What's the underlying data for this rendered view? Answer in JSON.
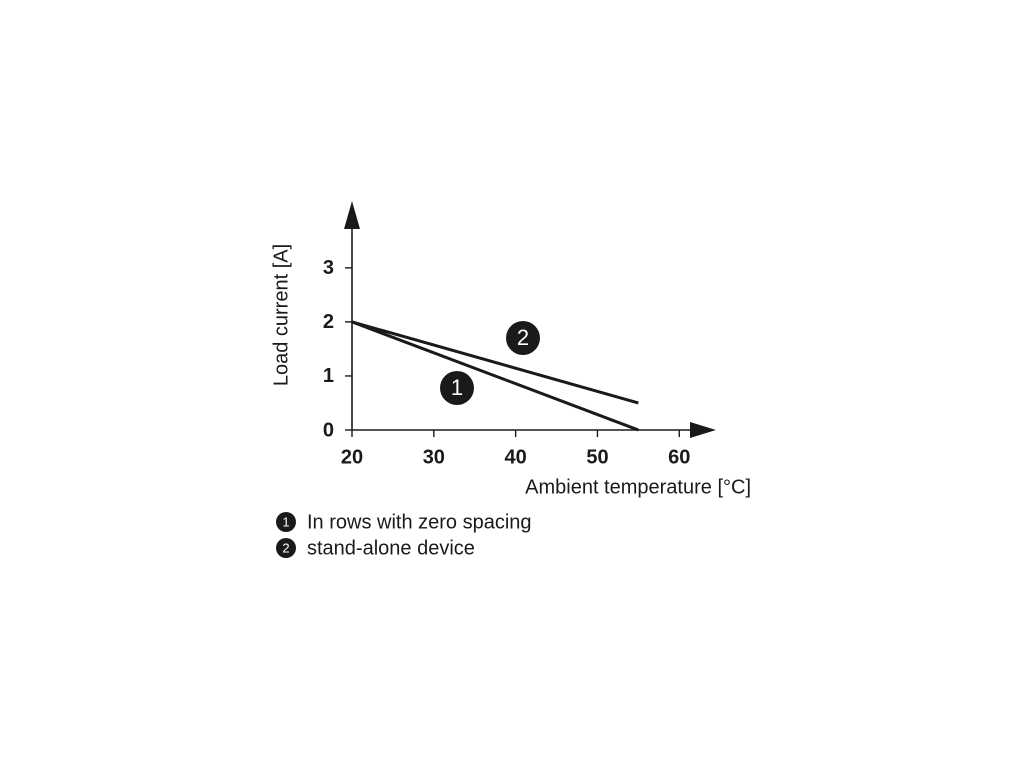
{
  "chart_data": {
    "type": "line",
    "y_label": "Load current [A]",
    "x_label": "Ambient temperature [°C]",
    "x": [
      20,
      55
    ],
    "series": [
      {
        "name": "In rows with zero spacing",
        "label": "1",
        "color": "#1a1a1a",
        "values": [
          2,
          0
        ]
      },
      {
        "name": "stand-alone device",
        "label": "2",
        "color": "#1a1a1a",
        "values": [
          2,
          0.5
        ]
      }
    ],
    "xlim": [
      20,
      64
    ],
    "ylim": [
      0,
      4.2
    ],
    "xticks": [
      20,
      30,
      40,
      50,
      60
    ],
    "yticks": [
      0,
      1,
      2,
      3
    ],
    "grid": false
  }
}
